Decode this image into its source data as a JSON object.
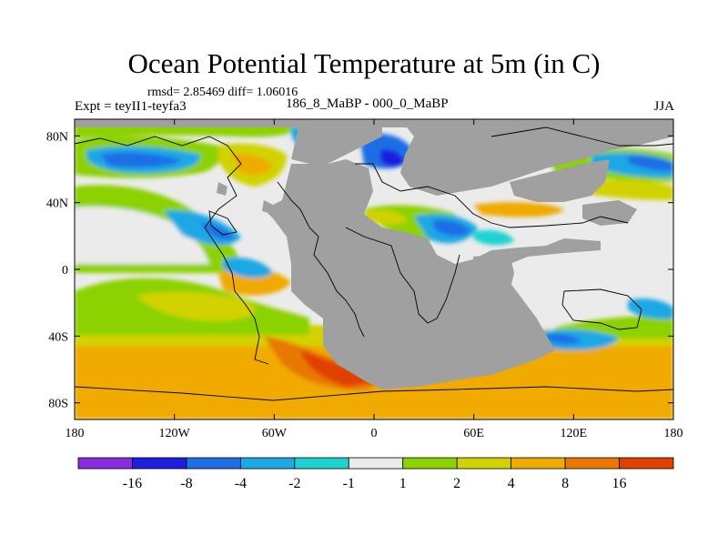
{
  "title": "Ocean Potential Temperature at 5m (in C)",
  "stats": "rmsd= 2.85469 diff= 1.06016",
  "experiment": "Expt = teyII1-teyfa3",
  "subtitle": "186_8_MaBP - 000_0_MaBP",
  "season": "JJA",
  "map": {
    "lon_range": [
      -180,
      180
    ],
    "lat_range": [
      -90,
      90
    ],
    "lon_ticks": [
      {
        "value": -180,
        "label": "180"
      },
      {
        "value": -120,
        "label": "120W"
      },
      {
        "value": -60,
        "label": "60W"
      },
      {
        "value": 0,
        "label": "0"
      },
      {
        "value": 60,
        "label": "60E"
      },
      {
        "value": 120,
        "label": "120E"
      },
      {
        "value": 180,
        "label": "180"
      }
    ],
    "lat_ticks": [
      {
        "value": 80,
        "label": "80N"
      },
      {
        "value": 40,
        "label": "40N"
      },
      {
        "value": 0,
        "label": "0"
      },
      {
        "value": -40,
        "label": "40S"
      },
      {
        "value": -80,
        "label": "80S"
      }
    ],
    "land_color": "#a0a0a0",
    "neutral_color": "#ebebeb"
  },
  "colorbar": {
    "colors": [
      "#8a2be2",
      "#1e1ee0",
      "#1e6ee6",
      "#1ea8e6",
      "#1ed2d2",
      "#ebebeb",
      "#8cd200",
      "#d2d200",
      "#f0aa00",
      "#e87800",
      "#e04000"
    ],
    "labels": [
      "-16",
      "-8",
      "-4",
      "-2",
      "-1",
      "1",
      "2",
      "4",
      "8",
      "16"
    ]
  }
}
